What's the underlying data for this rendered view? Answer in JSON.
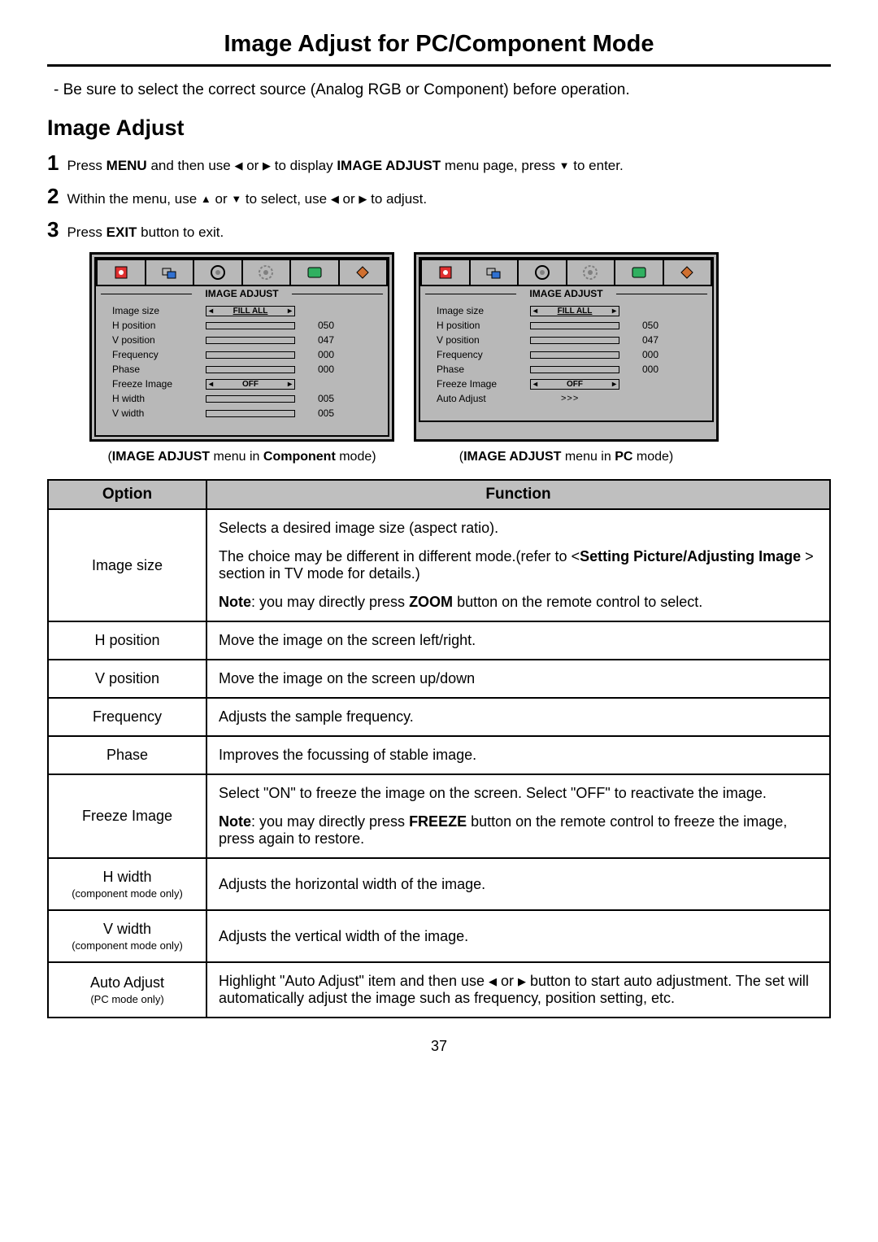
{
  "page": {
    "title": "Image Adjust for PC/Component Mode",
    "intro": "- Be sure to select the correct source (Analog RGB or Component) before operation.",
    "section": "Image Adjust",
    "page_number": "37"
  },
  "steps": {
    "s1_num": "1",
    "s1_pre": "Press ",
    "s1_menu": "MENU",
    "s1_mid1": " and then use ",
    "s1_or1": " or ",
    "s1_mid2": " to display ",
    "s1_ia": "IMAGE ADJUST",
    "s1_mid3": " menu page, press ",
    "s1_end": " to enter.",
    "s2_num": "2",
    "s2_pre": "Within the menu, use ",
    "s2_or1": " or ",
    "s2_mid": " to select,  use ",
    "s2_or2": " or ",
    "s2_end": " to adjust.",
    "s3_num": "3",
    "s3_pre": "Press ",
    "s3_exit": "EXIT",
    "s3_end": " button to exit."
  },
  "osd": {
    "header": "IMAGE ADJUST",
    "component": {
      "rows": [
        {
          "label": "Image size",
          "type": "sel",
          "value": "FILL ALL",
          "underline": true
        },
        {
          "label": "H position",
          "type": "bar",
          "value": "050"
        },
        {
          "label": "V position",
          "type": "bar",
          "value": "047"
        },
        {
          "label": "Frequency",
          "type": "bar",
          "value": "000"
        },
        {
          "label": "Phase",
          "type": "bar",
          "value": "000"
        },
        {
          "label": "Freeze Image",
          "type": "sel",
          "value": "OFF"
        },
        {
          "label": "H width",
          "type": "bar",
          "value": "005"
        },
        {
          "label": "V width",
          "type": "bar",
          "value": "005"
        }
      ]
    },
    "pc": {
      "rows": [
        {
          "label": "Image size",
          "type": "sel",
          "value": "FILL ALL",
          "underline": true
        },
        {
          "label": "H position",
          "type": "bar",
          "value": "050"
        },
        {
          "label": "V position",
          "type": "bar",
          "value": "047"
        },
        {
          "label": "Frequency",
          "type": "bar",
          "value": "000"
        },
        {
          "label": "Phase",
          "type": "bar",
          "value": "000"
        },
        {
          "label": "Freeze Image",
          "type": "sel",
          "value": "OFF"
        },
        {
          "label": "Auto Adjust",
          "type": "auto",
          "value": ">>>"
        }
      ]
    }
  },
  "captions": {
    "comp_pre": "(",
    "comp_b1": "IMAGE ADJUST",
    "comp_mid": " menu in ",
    "comp_b2": "Component",
    "comp_end": " mode)",
    "pc_pre": "(",
    "pc_b1": "IMAGE ADJUST",
    "pc_mid": " menu in ",
    "pc_b2": "PC",
    "pc_end": " mode)"
  },
  "table": {
    "h_option": "Option",
    "h_function": "Function",
    "image_size": {
      "label": "Image size",
      "p1": "Selects a desired image size (aspect ratio).",
      "p2_pre": "The choice may be different in different mode.(refer to <",
      "p2_b": "Setting Picture/Adjusting Image ",
      "p2_post": "> section in TV mode for details.)",
      "p3_b1": "Note",
      "p3_mid": ": you may directly press ",
      "p3_b2": "ZOOM",
      "p3_end": " button on the remote control to select."
    },
    "h_position": {
      "label": "H position",
      "fn": "Move the image on the screen left/right."
    },
    "v_position": {
      "label": "V position",
      "fn": "Move the image on the screen up/down"
    },
    "frequency": {
      "label": "Frequency",
      "fn": "Adjusts the sample frequency."
    },
    "phase": {
      "label": "Phase",
      "fn": "Improves the focussing of stable image."
    },
    "freeze": {
      "label": "Freeze Image",
      "p1": "Select \"ON\" to freeze the image on the screen. Select \"OFF\" to reactivate the image.",
      "p2_b1": "Note",
      "p2_mid": ": you may directly press ",
      "p2_b2": "FREEZE",
      "p2_end": " button on the remote control to freeze the image, press again to restore."
    },
    "h_width": {
      "label": "H width",
      "sub": "(component mode only)",
      "fn": "Adjusts the horizontal width of the image."
    },
    "v_width": {
      "label": "V width",
      "sub": "(component mode only)",
      "fn": "Adjusts the vertical width of the image."
    },
    "auto": {
      "label": "Auto Adjust",
      "sub": "(PC mode only)",
      "pre": "Highlight \"Auto Adjust\" item and then use ",
      "or": " or ",
      "post": " button to start auto adjustment. The set will automatically adjust the image such as frequency, position setting, etc."
    }
  },
  "colors": {
    "panel_bg": "#b8b8b8",
    "table_header_bg": "#bfbfbf",
    "icon_colors": [
      "#e03030",
      "#3070d0",
      "#808080",
      "#808080",
      "#30b060",
      "#d07030"
    ]
  }
}
